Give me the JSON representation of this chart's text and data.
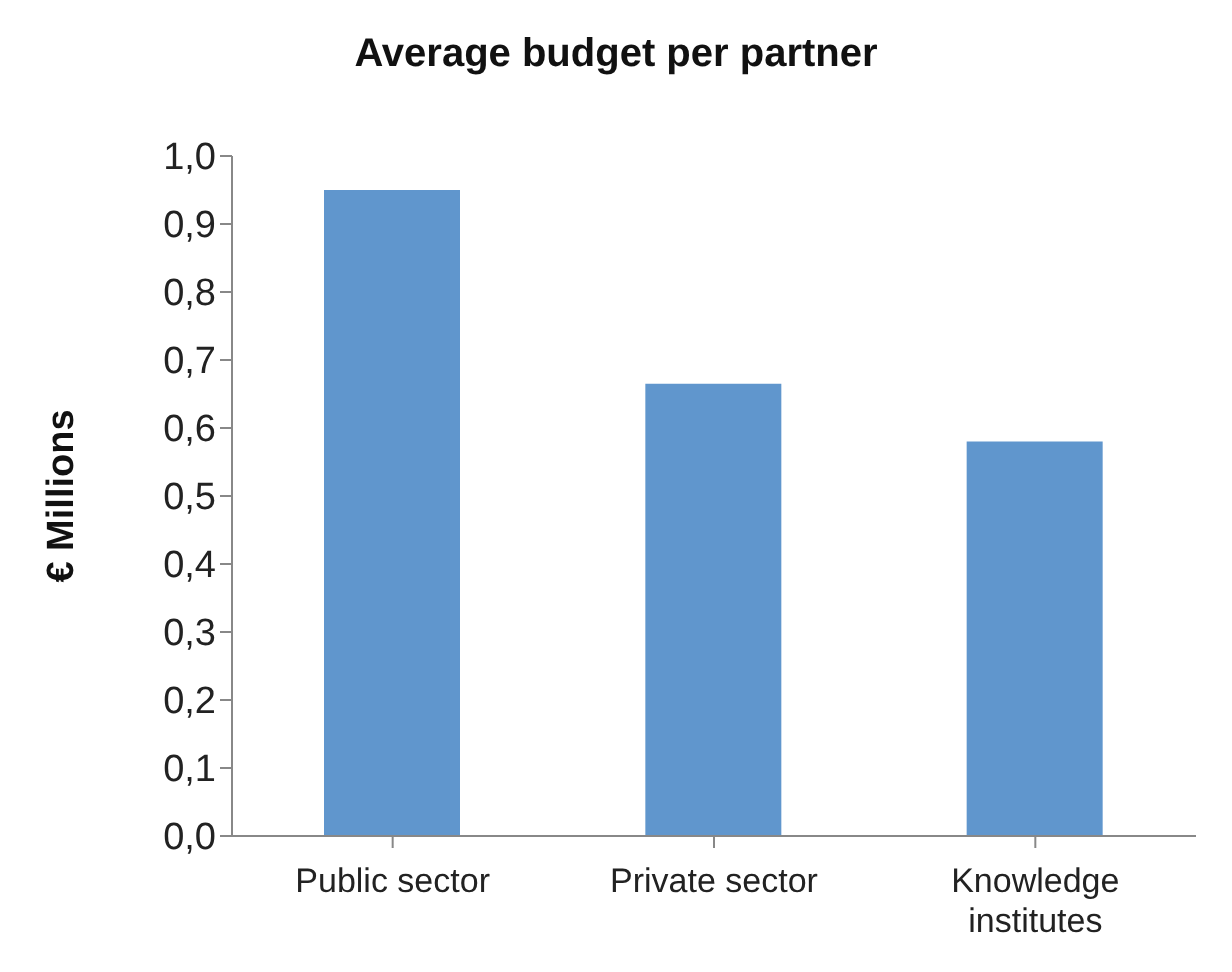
{
  "chart_data": {
    "type": "bar",
    "title": "Average budget per partner",
    "ylabel": "€ Millions",
    "categories": [
      "Public sector",
      "Private sector",
      "Knowledge institutes"
    ],
    "values": [
      0.95,
      0.665,
      0.58
    ],
    "color": "#6096cd",
    "ylim": [
      0,
      1
    ],
    "yticks": [
      {
        "value": 0,
        "label": "0,0"
      },
      {
        "value": 0.1,
        "label": "0,1"
      },
      {
        "value": 0.2,
        "label": "0,2"
      },
      {
        "value": 0.3,
        "label": "0,3"
      },
      {
        "value": 0.4,
        "label": "0,4"
      },
      {
        "value": 0.5,
        "label": "0,5"
      },
      {
        "value": 0.6,
        "label": "0,6"
      },
      {
        "value": 0.7,
        "label": "0,7"
      },
      {
        "value": 0.8,
        "label": "0,8"
      },
      {
        "value": 0.9,
        "label": "0,9"
      },
      {
        "value": 1,
        "label": "1,0"
      }
    ],
    "grid": false,
    "legend": false
  }
}
